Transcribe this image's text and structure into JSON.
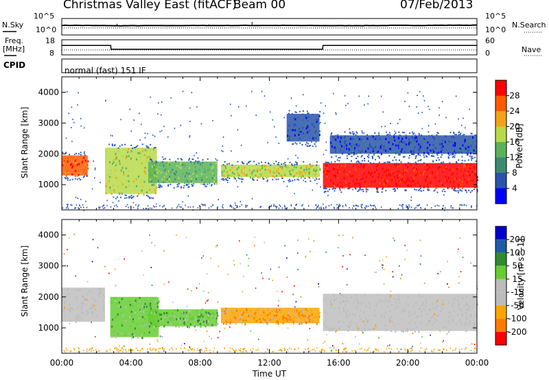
{
  "header": {
    "title": "Christmas Valley East (fitACF)",
    "beam": "Beam 00",
    "date": "07/Feb/2013"
  },
  "top_panels": {
    "nsky_label": "N.Sky",
    "nsky_ticks": [
      "10^5",
      "10^0"
    ],
    "nsearch_label": "N.Search",
    "nsearch_ticks": [
      "10^5",
      "10^0"
    ],
    "freq_label": "Freq.",
    "freq_unit": "[MHz]",
    "freq_ticks": [
      "18",
      "8"
    ],
    "nave_label": "Nave",
    "nave_ticks": [
      "60",
      "0"
    ],
    "cpid_label": "CPID",
    "mode_text": "normal (fast) 151 IF"
  },
  "colors": {
    "power": [
      "#0000ff",
      "#2a53ac",
      "#3c8a74",
      "#5ab35a",
      "#b8d94a",
      "#f5a11b",
      "#ff5a00",
      "#ff0000"
    ],
    "velocity": [
      "#ff0000",
      "#ff7a00",
      "#ffa500",
      "#bcbcbc",
      "#bcbcbc",
      "#66cc33",
      "#2e8b2e",
      "#1f5aa8",
      "#0000cc"
    ],
    "noise": "#2d59c0",
    "band": "#3c8a74",
    "ground_scatter": "#bebebe"
  },
  "chart_data": [
    {
      "type": "line",
      "title": "N.Sky / N.Search",
      "x": [
        "00:00",
        "02:50",
        "03:00",
        "08:00",
        "12:00",
        "16:00",
        "20:00",
        "24:00"
      ],
      "series": [
        {
          "name": "N.Sky",
          "values": [
            1200,
            900,
            800,
            1000,
            1100,
            900,
            1100,
            1400
          ]
        },
        {
          "name": "N.Search",
          "values": [
            100,
            100,
            100,
            100,
            100,
            100,
            100,
            100
          ]
        }
      ]
    },
    {
      "type": "line",
      "title": "Freq. / Nave",
      "x": [
        "00:00",
        "02:50",
        "02:51",
        "15:05",
        "15:06",
        "24:00"
      ],
      "series": [
        {
          "name": "Freq.",
          "values": [
            14.5,
            14.5,
            11.5,
            11.5,
            14.5,
            14.5
          ]
        },
        {
          "name": "Nave",
          "values": [
            17,
            17,
            17,
            17,
            17,
            17
          ]
        }
      ]
    },
    {
      "type": "heatmap",
      "title": "Power",
      "xlabel": "",
      "ylabel": "Slant Range [km]",
      "x_ticks": [
        "00:00",
        "04:00",
        "08:00",
        "12:00",
        "16:00",
        "20:00",
        "00:00"
      ],
      "y_ticks": [
        1000,
        2000,
        3000,
        4000
      ],
      "ylim": [
        180,
        4500
      ],
      "colorbar": {
        "label": "Power [dB]",
        "ticks": [
          4,
          8,
          12,
          16,
          20,
          24,
          28
        ]
      },
      "features": [
        {
          "name": "band-0",
          "t0": 0.0,
          "t1": 1.5,
          "r0": 1300,
          "r1": 1950,
          "level": 6
        },
        {
          "name": "band-1",
          "t0": 2.5,
          "t1": 5.5,
          "r0": 700,
          "r1": 2200,
          "level": 4
        },
        {
          "name": "band-2",
          "t0": 5.0,
          "t1": 9.0,
          "r0": 1050,
          "r1": 1750,
          "level": 3
        },
        {
          "name": "band-3",
          "t0": 9.2,
          "t1": 14.9,
          "r0": 1250,
          "r1": 1650,
          "level": 4
        },
        {
          "name": "band-4",
          "t0": 15.1,
          "t1": 24.0,
          "r0": 900,
          "r1": 1700,
          "level": 7
        },
        {
          "name": "band-5",
          "t0": 13.0,
          "t1": 14.9,
          "r0": 2400,
          "r1": 3300,
          "level": 1
        },
        {
          "name": "band-6",
          "t0": 15.5,
          "t1": 24.0,
          "r0": 2000,
          "r1": 2600,
          "level": 1
        }
      ]
    },
    {
      "type": "heatmap",
      "title": "Velocity",
      "xlabel": "Time UT",
      "ylabel": "Slant Range [km]",
      "x_ticks": [
        "00:00",
        "04:00",
        "08:00",
        "12:00",
        "16:00",
        "20:00",
        "00:00"
      ],
      "y_ticks": [
        1000,
        2000,
        3000,
        4000
      ],
      "ylim": [
        180,
        4500
      ],
      "colorbar": {
        "label": "Velocity [m s^-1]",
        "ticks": [
          200,
          100,
          50,
          15,
          -15,
          -50,
          -100,
          -200
        ]
      },
      "features": [
        {
          "name": "gs-0",
          "t0": 0.0,
          "t1": 2.5,
          "r0": 1200,
          "r1": 2300,
          "level": 3
        },
        {
          "name": "v-1",
          "t0": 2.8,
          "t1": 5.6,
          "r0": 700,
          "r1": 2000,
          "level": 5
        },
        {
          "name": "v-2",
          "t0": 5.0,
          "t1": 9.0,
          "r0": 1050,
          "r1": 1600,
          "level": 5
        },
        {
          "name": "v-3",
          "t0": 9.2,
          "t1": 14.9,
          "r0": 1150,
          "r1": 1650,
          "level": 2
        },
        {
          "name": "gs-4",
          "t0": 15.1,
          "t1": 24.0,
          "r0": 900,
          "r1": 2100,
          "level": 3
        }
      ]
    }
  ]
}
